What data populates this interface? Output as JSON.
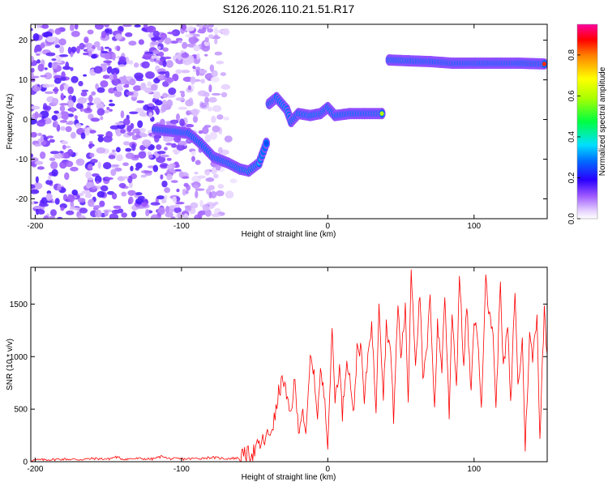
{
  "title": "S126.2026.110.21.51.R17",
  "chart_data": [
    {
      "type": "heatmap",
      "name": "spectrogram",
      "title": "S126.2026.110.21.51.R17",
      "xlabel": "Height of straight line (km)",
      "ylabel": "Frequency (Hz)",
      "xlim": [
        -203,
        150
      ],
      "ylim": [
        -25,
        24
      ],
      "xticks": [
        -200,
        -100,
        0,
        100
      ],
      "yticks": [
        20,
        10,
        0,
        -10,
        -20
      ],
      "colorbar": {
        "label": "Normalized spectral amplitude",
        "range": [
          0,
          0.95
        ],
        "ticks": [
          0.0,
          0.2,
          0.4,
          0.6,
          0.8
        ]
      },
      "noise_region": {
        "x_from": -203,
        "x_to": -63,
        "amplitude": 0.15
      },
      "ridge": [
        {
          "x": -118,
          "freq": -2.5,
          "amp": 0.25
        },
        {
          "x": -105,
          "freq": -3.0,
          "amp": 0.35
        },
        {
          "x": -95,
          "freq": -3.5,
          "amp": 0.3
        },
        {
          "x": -87,
          "freq": -6.0,
          "amp": 0.25
        },
        {
          "x": -78,
          "freq": -9.5,
          "amp": 0.3
        },
        {
          "x": -68,
          "freq": -11.0,
          "amp": 0.35
        },
        {
          "x": -60,
          "freq": -12.5,
          "amp": 0.4
        },
        {
          "x": -54,
          "freq": -13.0,
          "amp": 0.45
        },
        {
          "x": -47,
          "freq": -11.0,
          "amp": 0.35
        },
        {
          "x": -42,
          "freq": -6.0,
          "amp": 0.25
        },
        {
          "x": -40,
          "freq": 4.0,
          "amp": 0.2
        },
        {
          "x": -35,
          "freq": 5.5,
          "amp": 0.3
        },
        {
          "x": -28,
          "freq": 2.5,
          "amp": 0.35
        },
        {
          "x": -25,
          "freq": -0.5,
          "amp": 0.4
        },
        {
          "x": -20,
          "freq": 1.5,
          "amp": 0.4
        },
        {
          "x": -12,
          "freq": 1.0,
          "amp": 0.45
        },
        {
          "x": -5,
          "freq": 1.5,
          "amp": 0.45
        },
        {
          "x": 0,
          "freq": 3.0,
          "amp": 0.4
        },
        {
          "x": 5,
          "freq": 1.0,
          "amp": 0.45
        },
        {
          "x": 15,
          "freq": 1.5,
          "amp": 0.55
        },
        {
          "x": 25,
          "freq": 1.5,
          "amp": 0.6
        },
        {
          "x": 37,
          "freq": 1.5,
          "amp": 0.6
        },
        {
          "x": 42,
          "freq": 15.0,
          "amp": 0.6
        },
        {
          "x": 55,
          "freq": 14.8,
          "amp": 0.8
        },
        {
          "x": 70,
          "freq": 14.6,
          "amp": 0.85
        },
        {
          "x": 85,
          "freq": 14.2,
          "amp": 0.9
        },
        {
          "x": 100,
          "freq": 14.2,
          "amp": 0.9
        },
        {
          "x": 115,
          "freq": 14.2,
          "amp": 0.92
        },
        {
          "x": 130,
          "freq": 14.2,
          "amp": 0.9
        },
        {
          "x": 148,
          "freq": 14.0,
          "amp": 0.85
        }
      ]
    },
    {
      "type": "line",
      "name": "snr",
      "xlabel": "Height of straight line (km)",
      "ylabel": "SNR (10 * v/v)",
      "xlim": [
        -203,
        150
      ],
      "ylim": [
        0,
        1850
      ],
      "xticks": [
        -200,
        -100,
        0,
        100
      ],
      "yticks": [
        0,
        500,
        1000,
        1500
      ],
      "color": "#ff0000",
      "x": [
        -203,
        -190,
        -180,
        -170,
        -160,
        -150,
        -145,
        -140,
        -130,
        -120,
        -112,
        -110,
        -100,
        -90,
        -80,
        -70,
        -60,
        -55,
        -50,
        -45,
        -40,
        -36,
        -33,
        -30,
        -27,
        -25,
        -23,
        -20,
        -17,
        -15,
        -12,
        -10,
        -7,
        -5,
        -2,
        0,
        3,
        5,
        8,
        10,
        13,
        15,
        18,
        20,
        23,
        25,
        28,
        30,
        33,
        35,
        38,
        40,
        43,
        45,
        48,
        50,
        53,
        55,
        57,
        60,
        63,
        65,
        68,
        70,
        73,
        75,
        78,
        80,
        83,
        85,
        88,
        90,
        93,
        95,
        98,
        100,
        103,
        105,
        108,
        110,
        113,
        115,
        118,
        120,
        123,
        125,
        128,
        130,
        133,
        135,
        138,
        140,
        143,
        145,
        148,
        150
      ],
      "values": [
        15,
        20,
        25,
        20,
        30,
        25,
        45,
        25,
        30,
        25,
        55,
        30,
        25,
        30,
        40,
        30,
        35,
        60,
        100,
        180,
        260,
        420,
        700,
        780,
        500,
        450,
        800,
        300,
        520,
        200,
        980,
        900,
        450,
        850,
        600,
        180,
        1250,
        600,
        900,
        450,
        1000,
        800,
        450,
        1100,
        1050,
        560,
        1120,
        1300,
        500,
        1550,
        620,
        1300,
        1050,
        420,
        1500,
        1000,
        1450,
        580,
        1850,
        950,
        1600,
        760,
        1100,
        1580,
        500,
        1300,
        900,
        1600,
        450,
        1450,
        700,
        1800,
        880,
        1500,
        620,
        1380,
        1120,
        450,
        1850,
        1400,
        1250,
        480,
        1750,
        860,
        1300,
        520,
        1650,
        700,
        1150,
        150,
        1200,
        980,
        1400,
        220,
        1450,
        1020
      ]
    }
  ]
}
